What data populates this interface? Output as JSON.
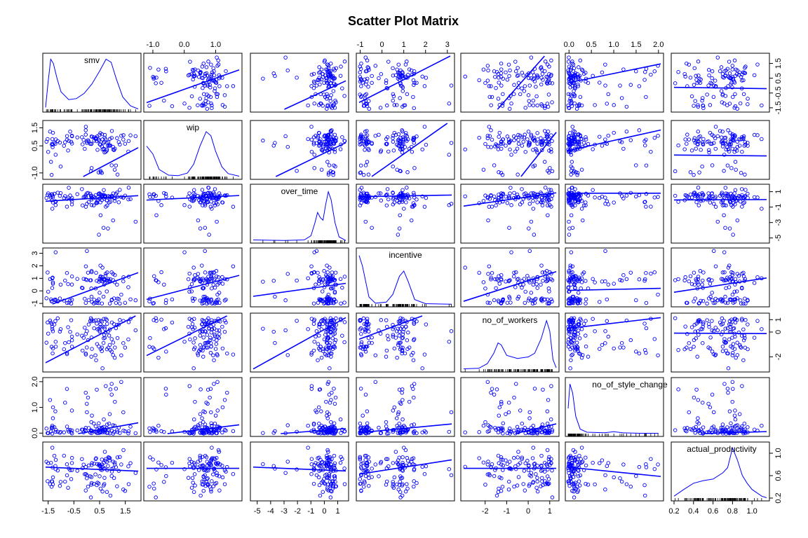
{
  "chart_data": {
    "type": "scatter",
    "title": "Scatter Plot Matrix",
    "colors": {
      "points": "#0000ff",
      "lines": "#0000ff",
      "frame": "#000000"
    },
    "grid": false,
    "variables": [
      {
        "name": "smv",
        "range": [
          -1.6,
          2.0
        ],
        "ticks": [
          -1.5,
          -0.5,
          0.5,
          1.5
        ],
        "tick_labels": [
          "-1.5",
          "-0.5",
          "0.5",
          "1.5"
        ],
        "density": [
          [
            -1.6,
            0.05
          ],
          [
            -1.5,
            0.55
          ],
          [
            -1.4,
            0.98
          ],
          [
            -1.3,
            0.9
          ],
          [
            -1.15,
            0.6
          ],
          [
            -1.0,
            0.35
          ],
          [
            -0.7,
            0.2
          ],
          [
            -0.4,
            0.22
          ],
          [
            -0.1,
            0.32
          ],
          [
            0.2,
            0.5
          ],
          [
            0.5,
            0.75
          ],
          [
            0.75,
            0.98
          ],
          [
            0.95,
            0.92
          ],
          [
            1.15,
            0.6
          ],
          [
            1.4,
            0.25
          ],
          [
            1.7,
            0.08
          ],
          [
            2.0,
            0.02
          ]
        ]
      },
      {
        "name": "wip",
        "range": [
          -1.2,
          1.75
        ],
        "ticks": [
          -1.0,
          0.0,
          1.0
        ],
        "tick_labels": [
          "-1.0",
          "0.0",
          "1.0"
        ],
        "ticks_alt": [
          -1.0,
          0.5,
          1.5
        ],
        "tick_labels_alt": [
          "-1.0",
          "0.5",
          "1.5"
        ],
        "density": [
          [
            -1.2,
            0.6
          ],
          [
            -1.0,
            0.45
          ],
          [
            -0.8,
            0.15
          ],
          [
            -0.5,
            0.04
          ],
          [
            -0.2,
            0.03
          ],
          [
            0.1,
            0.08
          ],
          [
            0.3,
            0.25
          ],
          [
            0.5,
            0.6
          ],
          [
            0.7,
            0.88
          ],
          [
            0.85,
            0.8
          ],
          [
            1.0,
            0.5
          ],
          [
            1.2,
            0.2
          ],
          [
            1.4,
            0.07
          ],
          [
            1.75,
            0.02
          ]
        ]
      },
      {
        "name": "over_time",
        "range": [
          -5.3,
          1.6
        ],
        "ticks": [
          -5,
          -4,
          -3,
          -2,
          -1,
          0,
          1
        ],
        "tick_labels": [
          "-5",
          "-4",
          "-3",
          "-2",
          "-1",
          "0",
          "1"
        ],
        "ticks_alt": [
          1,
          -1,
          -3,
          -5
        ],
        "tick_labels_alt": [
          "1",
          "-1",
          "-3",
          "-5"
        ],
        "density": [
          [
            -5.3,
            0.02
          ],
          [
            -3,
            0.01
          ],
          [
            -1.5,
            0.02
          ],
          [
            -1.0,
            0.1
          ],
          [
            -0.7,
            0.35
          ],
          [
            -0.5,
            0.55
          ],
          [
            -0.3,
            0.45
          ],
          [
            -0.1,
            0.4
          ],
          [
            0.1,
            0.7
          ],
          [
            0.3,
            0.95
          ],
          [
            0.5,
            0.8
          ],
          [
            0.8,
            0.35
          ],
          [
            1.1,
            0.08
          ],
          [
            1.6,
            0.01
          ]
        ]
      },
      {
        "name": "incentive",
        "range": [
          -1.05,
          3.2
        ],
        "ticks": [
          -1,
          0,
          1,
          2,
          3
        ],
        "tick_labels": [
          "-1",
          "0",
          "1",
          "2",
          "3"
        ],
        "density": [
          [
            -1.05,
            0.95
          ],
          [
            -0.9,
            0.75
          ],
          [
            -0.6,
            0.15
          ],
          [
            -0.3,
            0.03
          ],
          [
            0.2,
            0.05
          ],
          [
            0.5,
            0.2
          ],
          [
            0.8,
            0.55
          ],
          [
            1.0,
            0.65
          ],
          [
            1.2,
            0.45
          ],
          [
            1.5,
            0.1
          ],
          [
            2.0,
            0.02
          ],
          [
            3.2,
            0.01
          ]
        ]
      },
      {
        "name": "no_of_workers",
        "range": [
          -3.0,
          1.3
        ],
        "ticks": [
          -2,
          -1,
          0,
          1
        ],
        "tick_labels": [
          "-2",
          "-1",
          "0",
          "1"
        ],
        "ticks_alt": [
          -2,
          0,
          1
        ],
        "tick_labels_alt": [
          "-2",
          "0",
          "1"
        ],
        "density": [
          [
            -3.0,
            0.02
          ],
          [
            -2.3,
            0.03
          ],
          [
            -1.9,
            0.12
          ],
          [
            -1.6,
            0.32
          ],
          [
            -1.4,
            0.52
          ],
          [
            -1.25,
            0.48
          ],
          [
            -1.0,
            0.28
          ],
          [
            -0.5,
            0.22
          ],
          [
            0.0,
            0.25
          ],
          [
            0.3,
            0.32
          ],
          [
            0.6,
            0.6
          ],
          [
            0.85,
            0.95
          ],
          [
            1.0,
            0.75
          ],
          [
            1.15,
            0.2
          ],
          [
            1.3,
            0.04
          ]
        ]
      },
      {
        "name": "no_of_style_change",
        "range": [
          -0.02,
          2.05
        ],
        "ticks": [
          0.0,
          0.5,
          1.0,
          1.5,
          2.0
        ],
        "tick_labels": [
          "0.0",
          "0.5",
          "1.0",
          "1.5",
          "2.0"
        ],
        "ticks_alt": [
          0.0,
          1.0,
          2.0
        ],
        "tick_labels_alt": [
          "0.0",
          "1.0",
          "2.0"
        ],
        "density": [
          [
            -0.02,
            0.5
          ],
          [
            0.02,
            0.97
          ],
          [
            0.08,
            0.8
          ],
          [
            0.15,
            0.35
          ],
          [
            0.25,
            0.1
          ],
          [
            0.4,
            0.04
          ],
          [
            0.8,
            0.03
          ],
          [
            1.0,
            0.05
          ],
          [
            1.2,
            0.03
          ],
          [
            1.6,
            0.02
          ],
          [
            2.0,
            0.02
          ]
        ]
      },
      {
        "name": "actual_productivity",
        "range": [
          0.2,
          1.15
        ],
        "ticks": [
          0.2,
          0.4,
          0.6,
          0.8,
          1.0
        ],
        "tick_labels": [
          "0.2",
          "0.4",
          "0.6",
          "0.8",
          "1.0"
        ],
        "ticks_alt": [
          0.2,
          0.6,
          1.0
        ],
        "tick_labels_alt": [
          "0.2",
          "0.6",
          "1.0"
        ],
        "density": [
          [
            0.2,
            0.05
          ],
          [
            0.3,
            0.18
          ],
          [
            0.4,
            0.3
          ],
          [
            0.5,
            0.35
          ],
          [
            0.6,
            0.38
          ],
          [
            0.7,
            0.5
          ],
          [
            0.75,
            0.6
          ],
          [
            0.8,
            0.98
          ],
          [
            0.85,
            0.75
          ],
          [
            0.9,
            0.45
          ],
          [
            0.95,
            0.3
          ],
          [
            1.0,
            0.18
          ],
          [
            1.1,
            0.05
          ],
          [
            1.15,
            0.02
          ]
        ]
      }
    ],
    "axes": {
      "top": [
        1,
        3,
        5
      ],
      "bottom": [
        0,
        2,
        4,
        6
      ],
      "right": [
        0,
        2,
        4,
        6
      ],
      "left": [
        1,
        3,
        5
      ]
    },
    "fits": [
      [
        null,
        [
          -0.25,
          0.75
        ],
        [
          -0.35,
          0.42
        ],
        [
          -0.35,
          0.75
        ],
        [
          0.75,
          1.65
        ],
        [
          0.2,
          0.62
        ],
        [
          -0.1,
          -0.09
        ]
      ],
      [
        [
          -1.1,
          0.75
        ],
        null,
        [
          0.1,
          0.36
        ],
        [
          -0.8,
          0.85
        ],
        [
          -0.7,
          1.5
        ],
        [
          0.25,
          0.55
        ],
        [
          0.0,
          -0.05
        ]
      ],
      [
        [
          0.08,
          0.2
        ],
        [
          0.15,
          0.2
        ],
        null,
        [
          0.4,
          0.05
        ],
        [
          0.33,
          0.4
        ],
        [
          0.8,
          0.0
        ],
        [
          -0.08,
          0.05
        ]
      ],
      [
        [
          -0.05,
          0.75
        ],
        [
          0.1,
          0.65
        ],
        [
          0.36,
          0.15
        ],
        null,
        [
          0.82,
          0.55
        ],
        [
          0.04,
          0.08
        ],
        [
          -0.35,
          1.2
        ]
      ],
      [
        [
          -0.75,
          1.08
        ],
        [
          -0.4,
          1.25
        ],
        [
          0.2,
          0.6
        ],
        [
          0.1,
          0.65
        ],
        null,
        [
          0.3,
          0.42
        ],
        [
          -0.08,
          -0.04
        ]
      ],
      [
        [
          0.04,
          0.18
        ],
        [
          0.06,
          0.15
        ],
        [
          0.11,
          0.04
        ],
        [
          0.1,
          0.08
        ],
        [
          0.1,
          0.2
        ],
        null,
        [
          -0.08,
          0.12
        ]
      ],
      [
        [
          0.72,
          -0.02
        ],
        [
          0.73,
          0.0
        ],
        [
          0.7,
          -0.01
        ],
        [
          0.69,
          0.06
        ],
        [
          0.73,
          0.0
        ],
        [
          0.75,
          -0.08
        ],
        null
      ]
    ],
    "sample_count": 110
  }
}
